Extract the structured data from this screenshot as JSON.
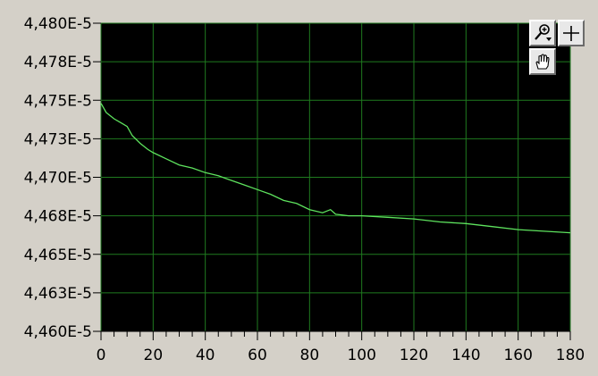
{
  "chart_data": {
    "type": "line",
    "title": "",
    "xlabel": "",
    "ylabel": "",
    "xlim": [
      0,
      180
    ],
    "ylim": [
      4.46e-05,
      4.48e-05
    ],
    "x_ticks": [
      "0",
      "20",
      "40",
      "60",
      "80",
      "100",
      "120",
      "140",
      "160",
      "180"
    ],
    "y_ticks": [
      "4,460E-5",
      "4,463E-5",
      "4,465E-5",
      "4,468E-5",
      "4,470E-5",
      "4,473E-5",
      "4,475E-5",
      "4,478E-5",
      "4,480E-5"
    ],
    "grid": true,
    "series": [
      {
        "color": "#5ee35e",
        "x": [
          0,
          2,
          5,
          8,
          10,
          12,
          15,
          18,
          20,
          25,
          30,
          35,
          40,
          45,
          50,
          55,
          60,
          65,
          70,
          75,
          80,
          85,
          88,
          90,
          95,
          100,
          110,
          120,
          130,
          140,
          150,
          160,
          170,
          180
        ],
        "y": [
          4.4748e-05,
          4.4742e-05,
          4.4738e-05,
          4.4735e-05,
          4.4733e-05,
          4.4727e-05,
          4.4722e-05,
          4.4718e-05,
          4.4716e-05,
          4.4712e-05,
          4.4708e-05,
          4.4706e-05,
          4.4703e-05,
          4.4701e-05,
          4.4698e-05,
          4.4695e-05,
          4.4692e-05,
          4.4689e-05,
          4.4685e-05,
          4.4683e-05,
          4.4679e-05,
          4.4677e-05,
          4.4679e-05,
          4.4676e-05,
          4.4675e-05,
          4.4675e-05,
          4.4674e-05,
          4.4673e-05,
          4.4671e-05,
          4.467e-05,
          4.4668e-05,
          4.4666e-05,
          4.4665e-05,
          4.4664e-05
        ]
      }
    ]
  },
  "palette": {
    "buttons": [
      {
        "name": "zoom-tool-button",
        "icon": "zoom-magnifier-icon"
      },
      {
        "name": "cursor-tool-button",
        "icon": "crosshair-icon"
      },
      {
        "name": "pan-tool-button",
        "icon": "hand-pan-icon"
      }
    ]
  },
  "colors": {
    "plot_bg": "#000000",
    "grid": "#1f7a1f",
    "trace": "#5ee35e",
    "frame": "#d4d0c8"
  }
}
